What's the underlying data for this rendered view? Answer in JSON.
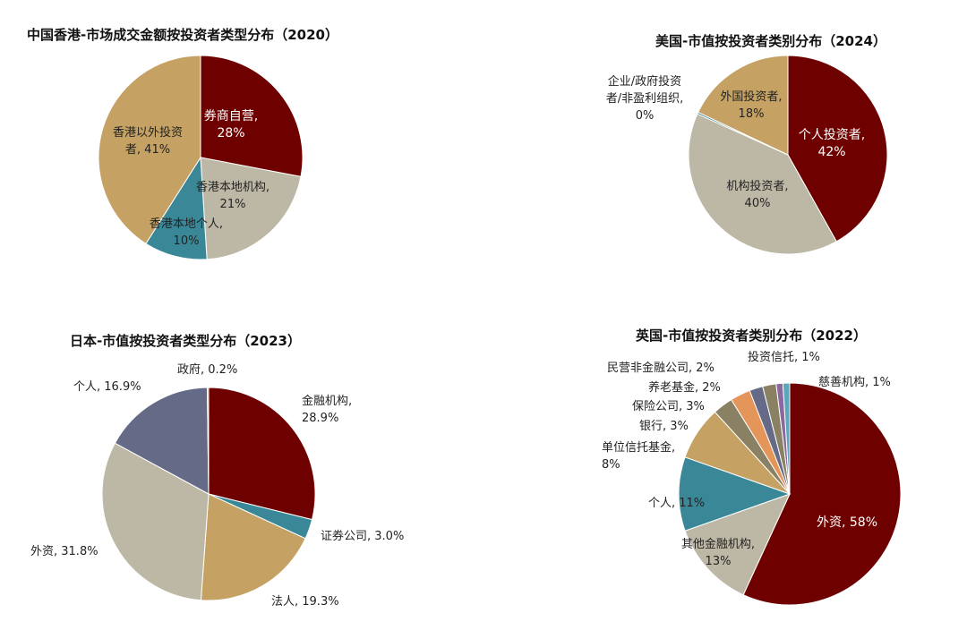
{
  "chart_data": [
    {
      "type": "pie",
      "title": "中国香港-市场成交金额按投资者类型分布（2020）",
      "slices": [
        {
          "name": "券商自营",
          "value": 28,
          "label": [
            "券商自营,",
            "28%"
          ],
          "color": "#6e0000"
        },
        {
          "name": "香港本地机构",
          "value": 21,
          "label": [
            "香港本地机构,",
            "21%"
          ],
          "color": "#bdb8a6"
        },
        {
          "name": "香港本地个人",
          "value": 10,
          "label": [
            "香港本地个人,",
            "10%"
          ],
          "color": "#3a8798"
        },
        {
          "name": "香港以外投资者",
          "value": 41,
          "label": [
            "香港以外投资",
            "者, 41%"
          ],
          "color": "#c5a263"
        }
      ]
    },
    {
      "type": "pie",
      "title": "美国-市值按投资者类别分布（2024）",
      "slices": [
        {
          "name": "个人投资者",
          "value": 42,
          "label": [
            "个人投资者,",
            "42%"
          ],
          "color": "#6e0000"
        },
        {
          "name": "机构投资者",
          "value": 40,
          "label": [
            "机构投资者,",
            "40%"
          ],
          "color": "#bdb8a6"
        },
        {
          "name": "企业/政府投资者/非盈利组织",
          "value": 0.3,
          "label": [
            "企业/政府投资",
            "者/非盈利组织,",
            "0%"
          ],
          "color": "#3a8798"
        },
        {
          "name": "外国投资者",
          "value": 18,
          "label": [
            "外国投资者,",
            "18%"
          ],
          "color": "#c5a263"
        }
      ]
    },
    {
      "type": "pie",
      "title": "日本-市值按投资者类型分布（2023）",
      "slices": [
        {
          "name": "金融机构",
          "value": 28.9,
          "label": [
            "金融机构,",
            "28.9%"
          ],
          "color": "#6e0000"
        },
        {
          "name": "证券公司",
          "value": 3.0,
          "label": [
            "证券公司, 3.0%"
          ],
          "color": "#3a8798"
        },
        {
          "name": "法人",
          "value": 19.3,
          "label": [
            "法人, 19.3%"
          ],
          "color": "#c5a263"
        },
        {
          "name": "外资",
          "value": 31.8,
          "label": [
            "外资, 31.8%"
          ],
          "color": "#bdb8a6"
        },
        {
          "name": "个人",
          "value": 16.9,
          "label": [
            "个人, 16.9%"
          ],
          "color": "#656a86"
        },
        {
          "name": "政府",
          "value": 0.2,
          "label": [
            "政府, 0.2%"
          ],
          "color": "#c5a263"
        }
      ]
    },
    {
      "type": "pie",
      "title": "英国-市值按投资者类别分布（2022）",
      "slices": [
        {
          "name": "外资",
          "value": 58,
          "label": [
            "外资, 58%"
          ],
          "color": "#6e0000"
        },
        {
          "name": "其他金融机构",
          "value": 13,
          "label": [
            "其他金融机构,",
            "13%"
          ],
          "color": "#bdb8a6"
        },
        {
          "name": "个人",
          "value": 11,
          "label": [
            "个人, 11%"
          ],
          "color": "#3a8798"
        },
        {
          "name": "单位信托基金",
          "value": 8,
          "label": [
            "单位信托基金,",
            "8%"
          ],
          "color": "#c5a263"
        },
        {
          "name": "银行",
          "value": 3,
          "label": [
            "银行, 3%"
          ],
          "color": "#8a8063"
        },
        {
          "name": "保险公司",
          "value": 3,
          "label": [
            "保险公司, 3%"
          ],
          "color": "#e3955a"
        },
        {
          "name": "养老基金",
          "value": 2,
          "label": [
            "养老基金, 2%"
          ],
          "color": "#656a86"
        },
        {
          "name": "民营非金融公司",
          "value": 2,
          "label": [
            "民营非金融公司, 2%"
          ],
          "color": "#8a8063"
        },
        {
          "name": "投资信托",
          "value": 1,
          "label": [
            "投资信托, 1%"
          ],
          "color": "#8b68a0"
        },
        {
          "name": "慈善机构",
          "value": 1,
          "label": [
            "慈善机构, 1%"
          ],
          "color": "#5aa7b9"
        }
      ]
    }
  ]
}
